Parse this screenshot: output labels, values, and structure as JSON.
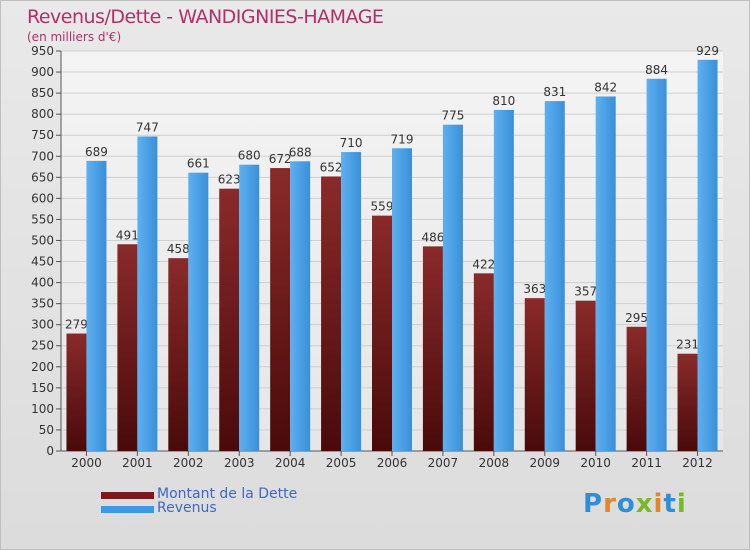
{
  "header": {
    "title": "Revenus/Dette - WANDIGNIES-HAMAGE",
    "subtitle": "(en milliers d'€)"
  },
  "legend": {
    "items": [
      {
        "label": "Montant de la Dette",
        "color": "#7a1a1a"
      },
      {
        "label": "Revenus",
        "color": "#3d99e6"
      }
    ]
  },
  "logo": {
    "text": "Proxiti"
  },
  "colors": {
    "title": "#b0306a",
    "legend_text": "#3f67c6",
    "dette": "#7a1a1a",
    "revenus": "#3d99e6"
  },
  "chart_data": {
    "type": "bar",
    "title": "Revenus/Dette - WANDIGNIES-HAMAGE",
    "subtitle": "(en milliers d'€)",
    "xlabel": "",
    "ylabel": "",
    "ylim": [
      0,
      950
    ],
    "y_ticks": [
      0,
      50,
      100,
      150,
      200,
      250,
      300,
      350,
      400,
      450,
      500,
      550,
      600,
      650,
      700,
      750,
      800,
      850,
      900,
      950
    ],
    "grid": true,
    "legend_position": "bottom-left",
    "categories": [
      "2000",
      "2001",
      "2002",
      "2003",
      "2004",
      "2005",
      "2006",
      "2007",
      "2008",
      "2009",
      "2010",
      "2011",
      "2012"
    ],
    "series": [
      {
        "name": "Montant de la Dette",
        "color": "#7a1a1a",
        "values": [
          279,
          491,
          458,
          623,
          672,
          652,
          559,
          486,
          422,
          363,
          357,
          295,
          231
        ]
      },
      {
        "name": "Revenus",
        "color": "#3d99e6",
        "values": [
          689,
          747,
          661,
          680,
          688,
          710,
          719,
          775,
          810,
          831,
          842,
          884,
          929
        ]
      }
    ]
  }
}
